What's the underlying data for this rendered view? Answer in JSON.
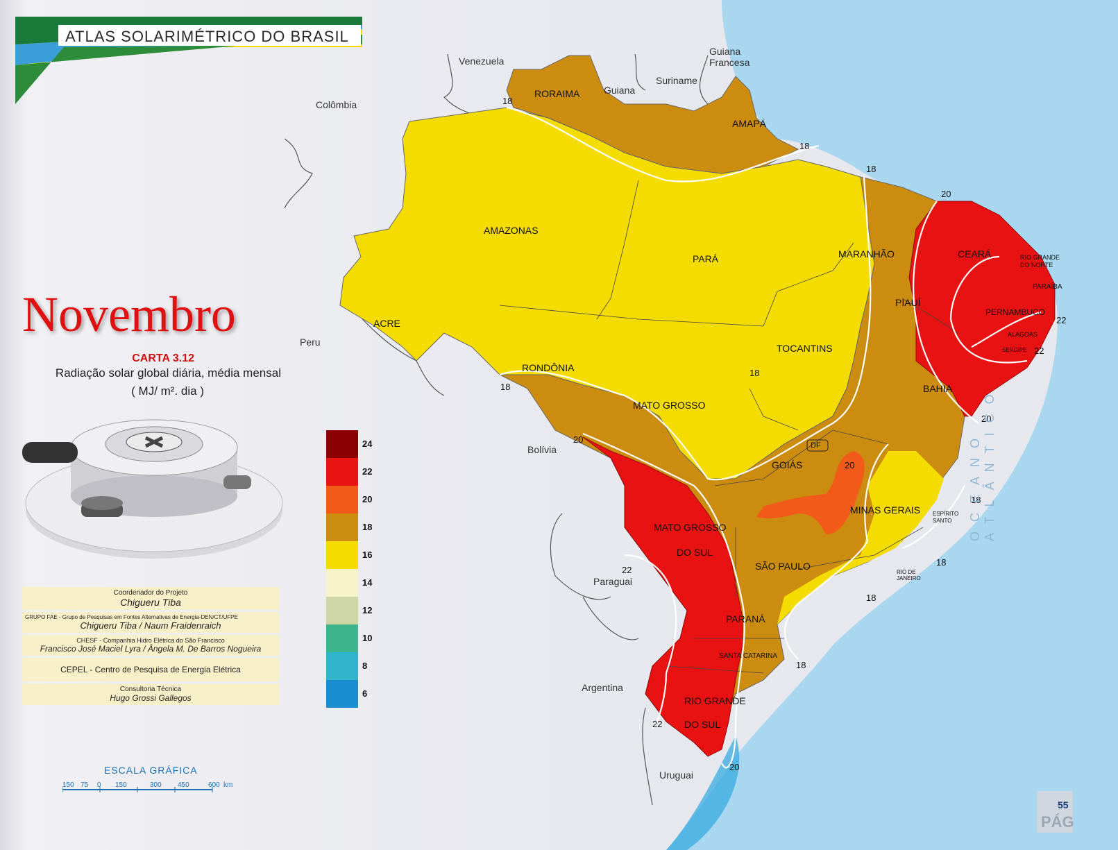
{
  "header": {
    "atlas_title": "ATLAS  SOLARIMÉTRICO DO  BRASIL"
  },
  "month": "Novembro",
  "carta": {
    "number": "CARTA 3.12",
    "description": "Radiação solar global diária, média mensal",
    "unit": "( MJ/ m². dia )"
  },
  "legend": {
    "values": [
      "24",
      "22",
      "20",
      "18",
      "16",
      "14",
      "12",
      "10",
      "8",
      "6"
    ],
    "colors": [
      "#8b0000",
      "#e81212",
      "#f25a1a",
      "#cc8c10",
      "#f5dc00",
      "#f7f3c8",
      "#cdd6a4",
      "#3cb48c",
      "#30b4cc",
      "#1a8cd0"
    ]
  },
  "credits": [
    {
      "role": "Coordenador do Projeto",
      "names": "Chigueru  Tiba"
    },
    {
      "role": "GRUPO  FAE - Grupo de Pesquisas em Fontes Alternativas de Energia-DEN/CT/UFPE",
      "names": "Chigueru Tiba /   Naum  Fraidenraich"
    },
    {
      "role": "CHESF  -  Companhia Hidro Elétrica do São Francisco",
      "names": "Francisco José Maciel Lyra / Ângela M. De Barros Nogueira"
    },
    {
      "role": "CEPEL - Centro de Pesquisa de Energia Elétrica",
      "names": ""
    },
    {
      "role": "Consultoria Técnica",
      "names": "Hugo  Grossi Gallegos"
    }
  ],
  "scale": {
    "title": "ESCALA  GRÁFICA",
    "ticks": [
      "150",
      "75",
      "0",
      "150",
      "300",
      "450",
      "600",
      "km"
    ]
  },
  "states": {
    "roraima": "RORAIMA",
    "amapa": "AMAPÁ",
    "amazonas": "AMAZONAS",
    "para": "PARÁ",
    "maranhao": "MARANHÃO",
    "ceara": "CEARÁ",
    "rn": "RIO GRANDE DO NORTE",
    "paraiba": "PARAÍBA",
    "pernambuco": "PERNAMBUCO",
    "alagoas": "ALAGOAS",
    "sergipe": "SERGIPE",
    "piaui": "PIAUÍ",
    "acre": "ACRE",
    "rondonia": "RONDÔNIA",
    "tocantins": "TOCANTINS",
    "bahia": "BAHIA",
    "mato_grosso": "MATO  GROSSO",
    "df": "DF",
    "goias": "GOIÁS",
    "minas": "MINAS GERAIS",
    "es": "ESPÍRITO SANTO",
    "ms1": "MATO  GROSSO",
    "ms2": "DO SUL",
    "sao_paulo": "SÃO  PAULO",
    "rj": "RIO DE JANEIRO",
    "parana": "PARANÁ",
    "sc": "SANTA CATARINA",
    "rs1": "RIO GRANDE",
    "rs2": "DO  SUL"
  },
  "countries": {
    "venezuela": "Venezuela",
    "guiana_fr": "Guiana Francesa",
    "guiana": "Guiana",
    "suriname": "Suriname",
    "colombia": "Colômbia",
    "peru": "Peru",
    "bolivia": "Bolívia",
    "paraguai": "Paraguai",
    "argentina": "Argentina",
    "uruguai": "Uruguai"
  },
  "ocean_label": "OCEANO  ATLÂNTICO",
  "isolines": [
    "18",
    "18",
    "18",
    "20",
    "22",
    "22",
    "20",
    "18",
    "18",
    "20",
    "20",
    "18",
    "18",
    "18",
    "22",
    "22",
    "18",
    "20"
  ],
  "page": {
    "number": "55",
    "label": "PÁG"
  }
}
